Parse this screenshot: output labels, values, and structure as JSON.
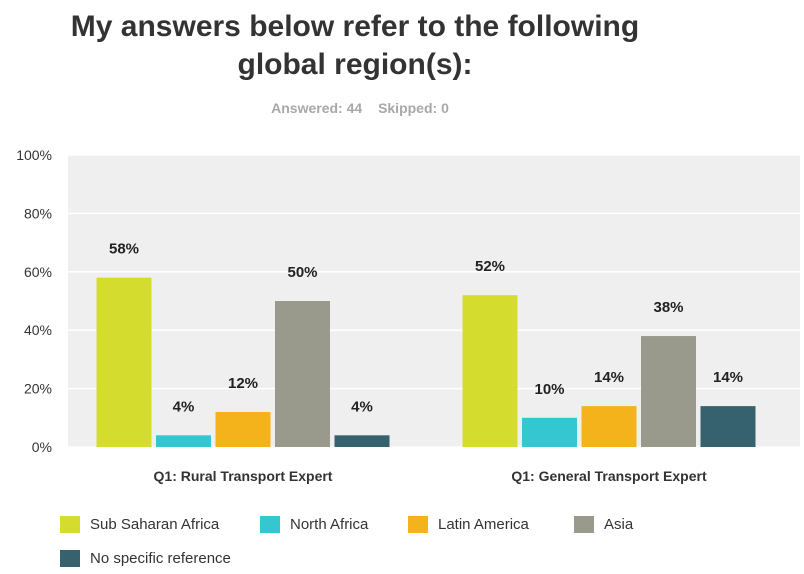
{
  "title_line1": "My answers below refer to the following",
  "title_line2": "global region(s):",
  "answered": "Answered: 44",
  "skipped": "Skipped: 0",
  "chart_data": {
    "type": "bar",
    "categories": [
      "Q1: Rural Transport Expert",
      "Q1: General Transport Expert"
    ],
    "series": [
      {
        "name": "Sub Saharan Africa",
        "color": "#d4dd2e",
        "values": [
          58,
          52
        ],
        "labels": [
          "58%",
          "52%"
        ]
      },
      {
        "name": "North Africa",
        "color": "#35c7d1",
        "values": [
          4,
          10
        ],
        "labels": [
          "4%",
          "10%"
        ]
      },
      {
        "name": "Latin America",
        "color": "#f5b31b",
        "values": [
          12,
          14
        ],
        "labels": [
          "12%",
          "14%"
        ]
      },
      {
        "name": "Asia",
        "color": "#99998c",
        "values": [
          50,
          38
        ],
        "labels": [
          "50%",
          "38%"
        ]
      },
      {
        "name": "No specific reference",
        "color": "#36616f",
        "values": [
          4,
          14
        ],
        "labels": [
          "4%",
          "14%"
        ]
      }
    ],
    "yticks": [
      "0%",
      "20%",
      "40%",
      "60%",
      "80%",
      "100%"
    ],
    "ylim": [
      0,
      100
    ],
    "grid": true,
    "legend": "bottom",
    "background": "#efefef"
  }
}
